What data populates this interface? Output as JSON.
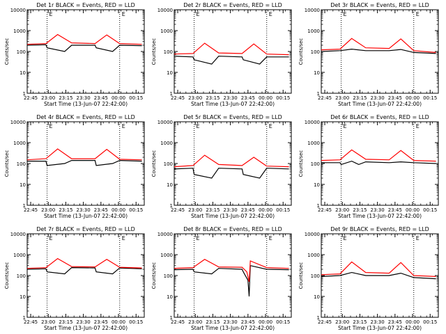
{
  "figure": {
    "xlabel": "Start Time (13-Jun-07 22:42:00)",
    "ylabel": "Counts/sec",
    "x_tick_labels": [
      "22:45",
      "23:00",
      "23:15",
      "23:30",
      "23:45",
      "00:00",
      "00:15"
    ],
    "y_tick_labels": [
      "1",
      "10",
      "100",
      "1000",
      "10000"
    ],
    "flag_marks": [
      "E",
      "E"
    ],
    "colors": {
      "events": "#000000",
      "lld": "#ff0000",
      "axes": "#000000",
      "background": "#ffffff"
    }
  },
  "chart_data": [
    {
      "type": "line",
      "title": "Det 1r BLACK = Events, RED = LLD",
      "xlabel": "Start Time (13-Jun-07 22:42:00)",
      "ylabel": "Counts/sec",
      "x_ticks": [
        "22:45",
        "23:00",
        "23:15",
        "23:30",
        "23:45",
        "00:00",
        "00:15"
      ],
      "ylim": [
        1,
        10000
      ],
      "y_scale": "log",
      "vlines": [
        "22:59",
        "00:01"
      ],
      "series": [
        {
          "name": "Events",
          "color": "#000000",
          "values": [
            {
              "x": "22:42",
              "y": 200
            },
            {
              "x": "22:58",
              "y": 210
            },
            {
              "x": "22:59",
              "y": 150
            },
            {
              "x": "23:14",
              "y": 100
            },
            {
              "x": "23:20",
              "y": 200
            },
            {
              "x": "23:40",
              "y": 200
            },
            {
              "x": "23:41",
              "y": 150
            },
            {
              "x": "23:55",
              "y": 100
            },
            {
              "x": "00:01",
              "y": 200
            },
            {
              "x": "00:20",
              "y": 190
            }
          ]
        },
        {
          "name": "LLD",
          "color": "#ff0000",
          "values": [
            {
              "x": "22:42",
              "y": 220
            },
            {
              "x": "22:58",
              "y": 240
            },
            {
              "x": "23:08",
              "y": 650
            },
            {
              "x": "23:20",
              "y": 260
            },
            {
              "x": "23:40",
              "y": 240
            },
            {
              "x": "23:50",
              "y": 620
            },
            {
              "x": "00:01",
              "y": 240
            },
            {
              "x": "00:20",
              "y": 220
            }
          ]
        }
      ]
    },
    {
      "type": "line",
      "title": "Det 2r BLACK = Events, RED = LLD",
      "xlabel": "Start Time (13-Jun-07 22:42:00)",
      "ylabel": "Counts/sec",
      "x_ticks": [
        "22:45",
        "23:00",
        "23:15",
        "23:30",
        "23:45",
        "00:00",
        "00:15"
      ],
      "ylim": [
        1,
        10000
      ],
      "y_scale": "log",
      "vlines": [
        "22:59",
        "00:01"
      ],
      "series": [
        {
          "name": "Events",
          "color": "#000000",
          "values": [
            {
              "x": "22:42",
              "y": 60
            },
            {
              "x": "22:58",
              "y": 55
            },
            {
              "x": "22:59",
              "y": 40
            },
            {
              "x": "23:14",
              "y": 25
            },
            {
              "x": "23:20",
              "y": 60
            },
            {
              "x": "23:40",
              "y": 55
            },
            {
              "x": "23:41",
              "y": 40
            },
            {
              "x": "23:55",
              "y": 25
            },
            {
              "x": "00:01",
              "y": 55
            },
            {
              "x": "00:20",
              "y": 55
            }
          ]
        },
        {
          "name": "LLD",
          "color": "#ff0000",
          "values": [
            {
              "x": "22:42",
              "y": 75
            },
            {
              "x": "22:58",
              "y": 80
            },
            {
              "x": "23:08",
              "y": 250
            },
            {
              "x": "23:20",
              "y": 85
            },
            {
              "x": "23:40",
              "y": 80
            },
            {
              "x": "23:50",
              "y": 230
            },
            {
              "x": "00:01",
              "y": 75
            },
            {
              "x": "00:20",
              "y": 70
            }
          ]
        }
      ]
    },
    {
      "type": "line",
      "title": "Det 3r BLACK = Events, RED = LLD",
      "xlabel": "Start Time (13-Jun-07 22:42:00)",
      "ylabel": "Counts/sec",
      "x_ticks": [
        "22:45",
        "23:00",
        "23:15",
        "23:30",
        "23:45",
        "00:00",
        "00:15"
      ],
      "ylim": [
        1,
        10000
      ],
      "y_scale": "log",
      "vlines": [
        "22:59",
        "00:01"
      ],
      "series": [
        {
          "name": "Events",
          "color": "#000000",
          "values": [
            {
              "x": "22:42",
              "y": 100
            },
            {
              "x": "22:58",
              "y": 110
            },
            {
              "x": "23:08",
              "y": 130
            },
            {
              "x": "23:20",
              "y": 110
            },
            {
              "x": "23:40",
              "y": 110
            },
            {
              "x": "23:50",
              "y": 125
            },
            {
              "x": "00:01",
              "y": 90
            },
            {
              "x": "00:20",
              "y": 80
            }
          ]
        },
        {
          "name": "LLD",
          "color": "#ff0000",
          "values": [
            {
              "x": "22:42",
              "y": 120
            },
            {
              "x": "22:58",
              "y": 130
            },
            {
              "x": "23:08",
              "y": 420
            },
            {
              "x": "23:20",
              "y": 150
            },
            {
              "x": "23:40",
              "y": 140
            },
            {
              "x": "23:50",
              "y": 400
            },
            {
              "x": "00:01",
              "y": 110
            },
            {
              "x": "00:20",
              "y": 90
            }
          ]
        }
      ]
    },
    {
      "type": "line",
      "title": "Det 4r BLACK = Events, RED = LLD",
      "xlabel": "Start Time (13-Jun-07 22:42:00)",
      "ylabel": "Counts/sec",
      "x_ticks": [
        "22:45",
        "23:00",
        "23:15",
        "23:30",
        "23:45",
        "00:00",
        "00:15"
      ],
      "ylim": [
        1,
        10000
      ],
      "y_scale": "log",
      "vlines": [
        "22:59",
        "00:01"
      ],
      "series": [
        {
          "name": "Events",
          "color": "#000000",
          "values": [
            {
              "x": "22:42",
              "y": 130
            },
            {
              "x": "22:58",
              "y": 130
            },
            {
              "x": "22:59",
              "y": 80
            },
            {
              "x": "23:14",
              "y": 100
            },
            {
              "x": "23:20",
              "y": 140
            },
            {
              "x": "23:40",
              "y": 140
            },
            {
              "x": "23:41",
              "y": 80
            },
            {
              "x": "23:55",
              "y": 100
            },
            {
              "x": "00:01",
              "y": 140
            },
            {
              "x": "00:20",
              "y": 130
            }
          ]
        },
        {
          "name": "LLD",
          "color": "#ff0000",
          "values": [
            {
              "x": "22:42",
              "y": 150
            },
            {
              "x": "22:58",
              "y": 170
            },
            {
              "x": "23:08",
              "y": 500
            },
            {
              "x": "23:20",
              "y": 170
            },
            {
              "x": "23:40",
              "y": 170
            },
            {
              "x": "23:50",
              "y": 480
            },
            {
              "x": "00:01",
              "y": 160
            },
            {
              "x": "00:20",
              "y": 150
            }
          ]
        }
      ]
    },
    {
      "type": "line",
      "title": "Det 5r BLACK = Events, RED = LLD",
      "xlabel": "Start Time (13-Jun-07 22:42:00)",
      "ylabel": "Counts/sec",
      "x_ticks": [
        "22:45",
        "23:00",
        "23:15",
        "23:30",
        "23:45",
        "00:00",
        "00:15"
      ],
      "ylim": [
        1,
        10000
      ],
      "y_scale": "log",
      "vlines": [
        "22:59",
        "00:01"
      ],
      "series": [
        {
          "name": "Events",
          "color": "#000000",
          "values": [
            {
              "x": "22:42",
              "y": 55
            },
            {
              "x": "22:58",
              "y": 60
            },
            {
              "x": "22:59",
              "y": 30
            },
            {
              "x": "23:14",
              "y": 20
            },
            {
              "x": "23:20",
              "y": 60
            },
            {
              "x": "23:40",
              "y": 55
            },
            {
              "x": "23:41",
              "y": 30
            },
            {
              "x": "23:55",
              "y": 20
            },
            {
              "x": "00:01",
              "y": 60
            },
            {
              "x": "00:20",
              "y": 55
            }
          ]
        },
        {
          "name": "LLD",
          "color": "#ff0000",
          "values": [
            {
              "x": "22:42",
              "y": 70
            },
            {
              "x": "22:58",
              "y": 80
            },
            {
              "x": "23:08",
              "y": 250
            },
            {
              "x": "23:20",
              "y": 90
            },
            {
              "x": "23:40",
              "y": 80
            },
            {
              "x": "23:50",
              "y": 200
            },
            {
              "x": "00:01",
              "y": 75
            },
            {
              "x": "00:20",
              "y": 70
            }
          ]
        }
      ]
    },
    {
      "type": "line",
      "title": "Det 6r BLACK = Events, RED = LLD",
      "xlabel": "Start Time (13-Jun-07 22:42:00)",
      "ylabel": "Counts/sec",
      "x_ticks": [
        "22:45",
        "23:00",
        "23:15",
        "23:30",
        "23:45",
        "00:00",
        "00:15"
      ],
      "ylim": [
        1,
        10000
      ],
      "y_scale": "log",
      "vlines": [
        "22:59",
        "00:01"
      ],
      "series": [
        {
          "name": "Events",
          "color": "#000000",
          "values": [
            {
              "x": "22:42",
              "y": 110
            },
            {
              "x": "22:58",
              "y": 110
            },
            {
              "x": "22:59",
              "y": 90
            },
            {
              "x": "23:08",
              "y": 130
            },
            {
              "x": "23:14",
              "y": 90
            },
            {
              "x": "23:20",
              "y": 120
            },
            {
              "x": "23:40",
              "y": 110
            },
            {
              "x": "23:50",
              "y": 120
            },
            {
              "x": "00:01",
              "y": 110
            },
            {
              "x": "00:20",
              "y": 100
            }
          ]
        },
        {
          "name": "LLD",
          "color": "#ff0000",
          "values": [
            {
              "x": "22:42",
              "y": 140
            },
            {
              "x": "22:58",
              "y": 150
            },
            {
              "x": "23:08",
              "y": 450
            },
            {
              "x": "23:20",
              "y": 160
            },
            {
              "x": "23:40",
              "y": 150
            },
            {
              "x": "23:50",
              "y": 420
            },
            {
              "x": "00:01",
              "y": 140
            },
            {
              "x": "00:20",
              "y": 130
            }
          ]
        }
      ]
    },
    {
      "type": "line",
      "title": "Det 7r BLACK = Events, RED = LLD",
      "xlabel": "Start Time (13-Jun-07 22:42:00)",
      "ylabel": "Counts/sec",
      "x_ticks": [
        "22:45",
        "23:00",
        "23:15",
        "23:30",
        "23:45",
        "00:00",
        "00:15"
      ],
      "ylim": [
        1,
        10000
      ],
      "y_scale": "log",
      "vlines": [
        "22:59",
        "00:01"
      ],
      "series": [
        {
          "name": "Events",
          "color": "#000000",
          "values": [
            {
              "x": "22:42",
              "y": 200
            },
            {
              "x": "22:58",
              "y": 210
            },
            {
              "x": "22:59",
              "y": 150
            },
            {
              "x": "23:14",
              "y": 120
            },
            {
              "x": "23:20",
              "y": 240
            },
            {
              "x": "23:40",
              "y": 230
            },
            {
              "x": "23:41",
              "y": 150
            },
            {
              "x": "23:55",
              "y": 120
            },
            {
              "x": "00:01",
              "y": 230
            },
            {
              "x": "00:20",
              "y": 210
            }
          ]
        },
        {
          "name": "LLD",
          "color": "#ff0000",
          "values": [
            {
              "x": "22:42",
              "y": 220
            },
            {
              "x": "22:58",
              "y": 240
            },
            {
              "x": "23:08",
              "y": 650
            },
            {
              "x": "23:20",
              "y": 270
            },
            {
              "x": "23:40",
              "y": 260
            },
            {
              "x": "23:50",
              "y": 600
            },
            {
              "x": "00:01",
              "y": 250
            },
            {
              "x": "00:20",
              "y": 230
            }
          ]
        }
      ]
    },
    {
      "type": "line",
      "title": "Det 8r BLACK = Events, RED = LLD",
      "xlabel": "Start Time (13-Jun-07 22:42:00)",
      "ylabel": "Counts/sec",
      "x_ticks": [
        "22:45",
        "23:00",
        "23:15",
        "23:30",
        "23:45",
        "00:00",
        "00:15"
      ],
      "ylim": [
        1,
        10000
      ],
      "y_scale": "log",
      "vlines": [
        "22:59",
        "00:01"
      ],
      "series": [
        {
          "name": "Events",
          "color": "#000000",
          "values": [
            {
              "x": "22:42",
              "y": 190
            },
            {
              "x": "22:58",
              "y": 200
            },
            {
              "x": "22:59",
              "y": 150
            },
            {
              "x": "23:14",
              "y": 120
            },
            {
              "x": "23:20",
              "y": 220
            },
            {
              "x": "23:40",
              "y": 200
            },
            {
              "x": "23:41",
              "y": 150
            },
            {
              "x": "23:45",
              "y": 60
            },
            {
              "x": "23:46",
              "y": 10
            },
            {
              "x": "23:47",
              "y": 300
            },
            {
              "x": "00:01",
              "y": 200
            },
            {
              "x": "00:20",
              "y": 190
            }
          ]
        },
        {
          "name": "LLD",
          "color": "#ff0000",
          "values": [
            {
              "x": "22:42",
              "y": 220
            },
            {
              "x": "22:58",
              "y": 240
            },
            {
              "x": "23:08",
              "y": 600
            },
            {
              "x": "23:20",
              "y": 260
            },
            {
              "x": "23:40",
              "y": 250
            },
            {
              "x": "23:44",
              "y": 150
            },
            {
              "x": "23:46",
              "y": 50
            },
            {
              "x": "23:47",
              "y": 500
            },
            {
              "x": "00:01",
              "y": 240
            },
            {
              "x": "00:20",
              "y": 220
            }
          ]
        }
      ]
    },
    {
      "type": "line",
      "title": "Det 9r BLACK = Events, RED = LLD",
      "xlabel": "Start Time (13-Jun-07 22:42:00)",
      "ylabel": "Counts/sec",
      "x_ticks": [
        "22:45",
        "23:00",
        "23:15",
        "23:30",
        "23:45",
        "00:00",
        "00:15"
      ],
      "ylim": [
        1,
        10000
      ],
      "y_scale": "log",
      "vlines": [
        "22:59",
        "00:01"
      ],
      "series": [
        {
          "name": "Events",
          "color": "#000000",
          "values": [
            {
              "x": "22:42",
              "y": 90
            },
            {
              "x": "22:58",
              "y": 100
            },
            {
              "x": "23:08",
              "y": 140
            },
            {
              "x": "23:20",
              "y": 100
            },
            {
              "x": "23:40",
              "y": 100
            },
            {
              "x": "23:50",
              "y": 130
            },
            {
              "x": "00:01",
              "y": 80
            },
            {
              "x": "00:20",
              "y": 70
            }
          ]
        },
        {
          "name": "LLD",
          "color": "#ff0000",
          "values": [
            {
              "x": "22:42",
              "y": 110
            },
            {
              "x": "22:58",
              "y": 120
            },
            {
              "x": "23:08",
              "y": 450
            },
            {
              "x": "23:20",
              "y": 140
            },
            {
              "x": "23:40",
              "y": 130
            },
            {
              "x": "23:50",
              "y": 420
            },
            {
              "x": "00:01",
              "y": 100
            },
            {
              "x": "00:20",
              "y": 90
            }
          ]
        }
      ]
    }
  ]
}
